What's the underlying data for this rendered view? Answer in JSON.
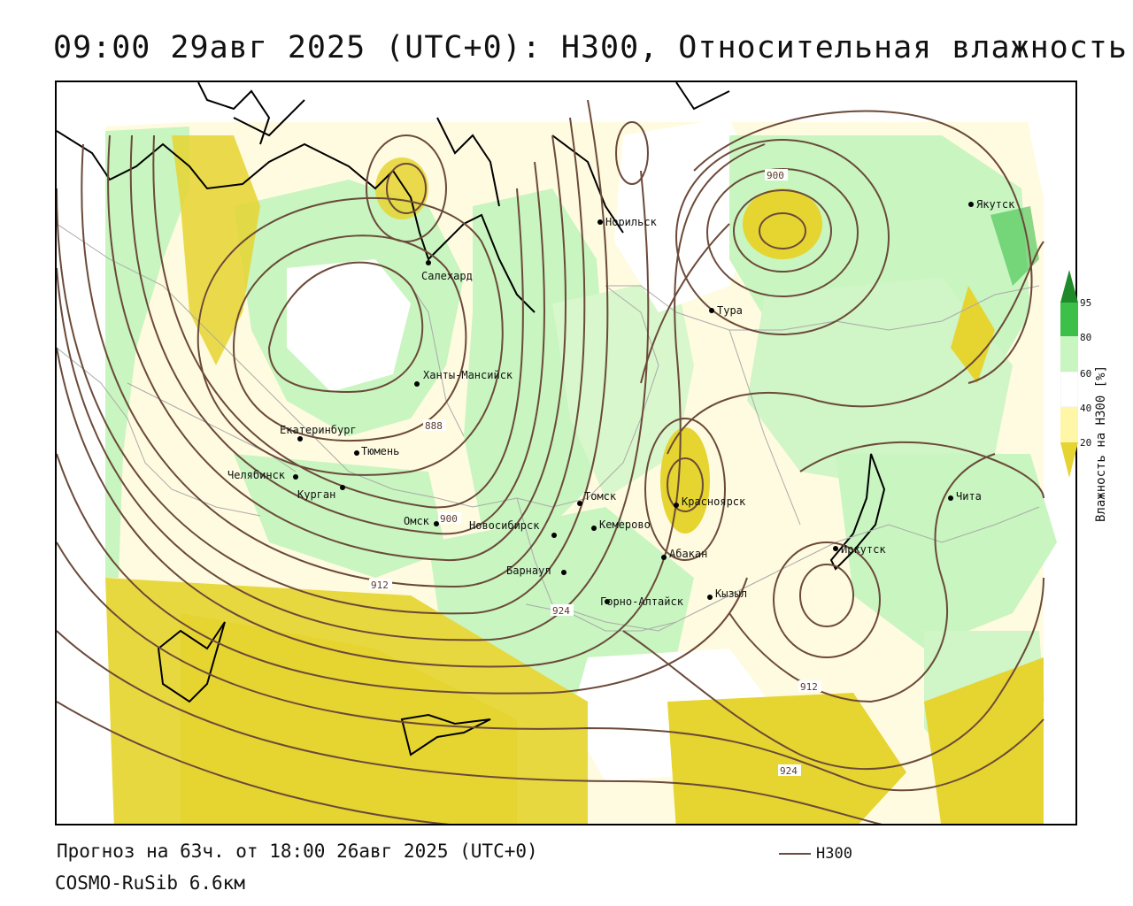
{
  "header": {
    "title": "09:00 29авг 2025 (UTC+0): H300, Относительная влажность"
  },
  "map": {
    "cities": [
      {
        "name": "Норильск",
        "lon_lat": [
          88.2,
          69.3
        ]
      },
      {
        "name": "Якутск",
        "lon_lat": [
          129.7,
          62.0
        ]
      },
      {
        "name": "Салехард",
        "lon_lat": [
          66.6,
          66.5
        ]
      },
      {
        "name": "Тура",
        "lon_lat": [
          100.2,
          64.3
        ]
      },
      {
        "name": "Ханты-Мансийск",
        "lon_lat": [
          69.0,
          61.0
        ]
      },
      {
        "name": "Екатеринбург",
        "lon_lat": [
          60.6,
          56.8
        ]
      },
      {
        "name": "Тюмень",
        "lon_lat": [
          65.5,
          57.2
        ]
      },
      {
        "name": "Челябинск",
        "lon_lat": [
          61.4,
          55.2
        ]
      },
      {
        "name": "Курган",
        "lon_lat": [
          65.3,
          55.4
        ]
      },
      {
        "name": "Омск",
        "lon_lat": [
          73.4,
          55.0
        ]
      },
      {
        "name": "Томск",
        "lon_lat": [
          85.0,
          56.5
        ]
      },
      {
        "name": "Кемерово",
        "lon_lat": [
          86.1,
          55.4
        ]
      },
      {
        "name": "Новосибирск",
        "lon_lat": [
          82.9,
          55.0
        ]
      },
      {
        "name": "Красноярск",
        "lon_lat": [
          92.9,
          56.0
        ]
      },
      {
        "name": "Абакан",
        "lon_lat": [
          91.4,
          53.7
        ]
      },
      {
        "name": "Барнаул",
        "lon_lat": [
          83.8,
          53.3
        ]
      },
      {
        "name": "Горно-Алтайск",
        "lon_lat": [
          85.9,
          51.9
        ]
      },
      {
        "name": "Кызыл",
        "lon_lat": [
          94.4,
          51.7
        ]
      },
      {
        "name": "Иркутск",
        "lon_lat": [
          104.3,
          52.3
        ]
      },
      {
        "name": "Чита",
        "lon_lat": [
          113.5,
          52.0
        ]
      }
    ],
    "contour_labels": [
      "900",
      "888",
      "900",
      "912",
      "924",
      "912",
      "924"
    ],
    "colors": {
      "contour": "#6b4a3a",
      "dry": "#e6d430",
      "mid_dry": "#fff6a8",
      "neutral": "#ffffff",
      "moist": "#c8f5c0",
      "wet": "#3cc04a",
      "very_wet": "#1f8a2a"
    }
  },
  "legend": {
    "title": "Влажность на H300 [%]",
    "ticks": [
      "95",
      "80",
      "60",
      "40",
      "20"
    ]
  },
  "footer": {
    "forecast": "Прогноз на 63ч. от 18:00 26авг 2025 (UTC+0)",
    "model": "COSMO-RuSib 6.6км",
    "series_name": "H300"
  }
}
